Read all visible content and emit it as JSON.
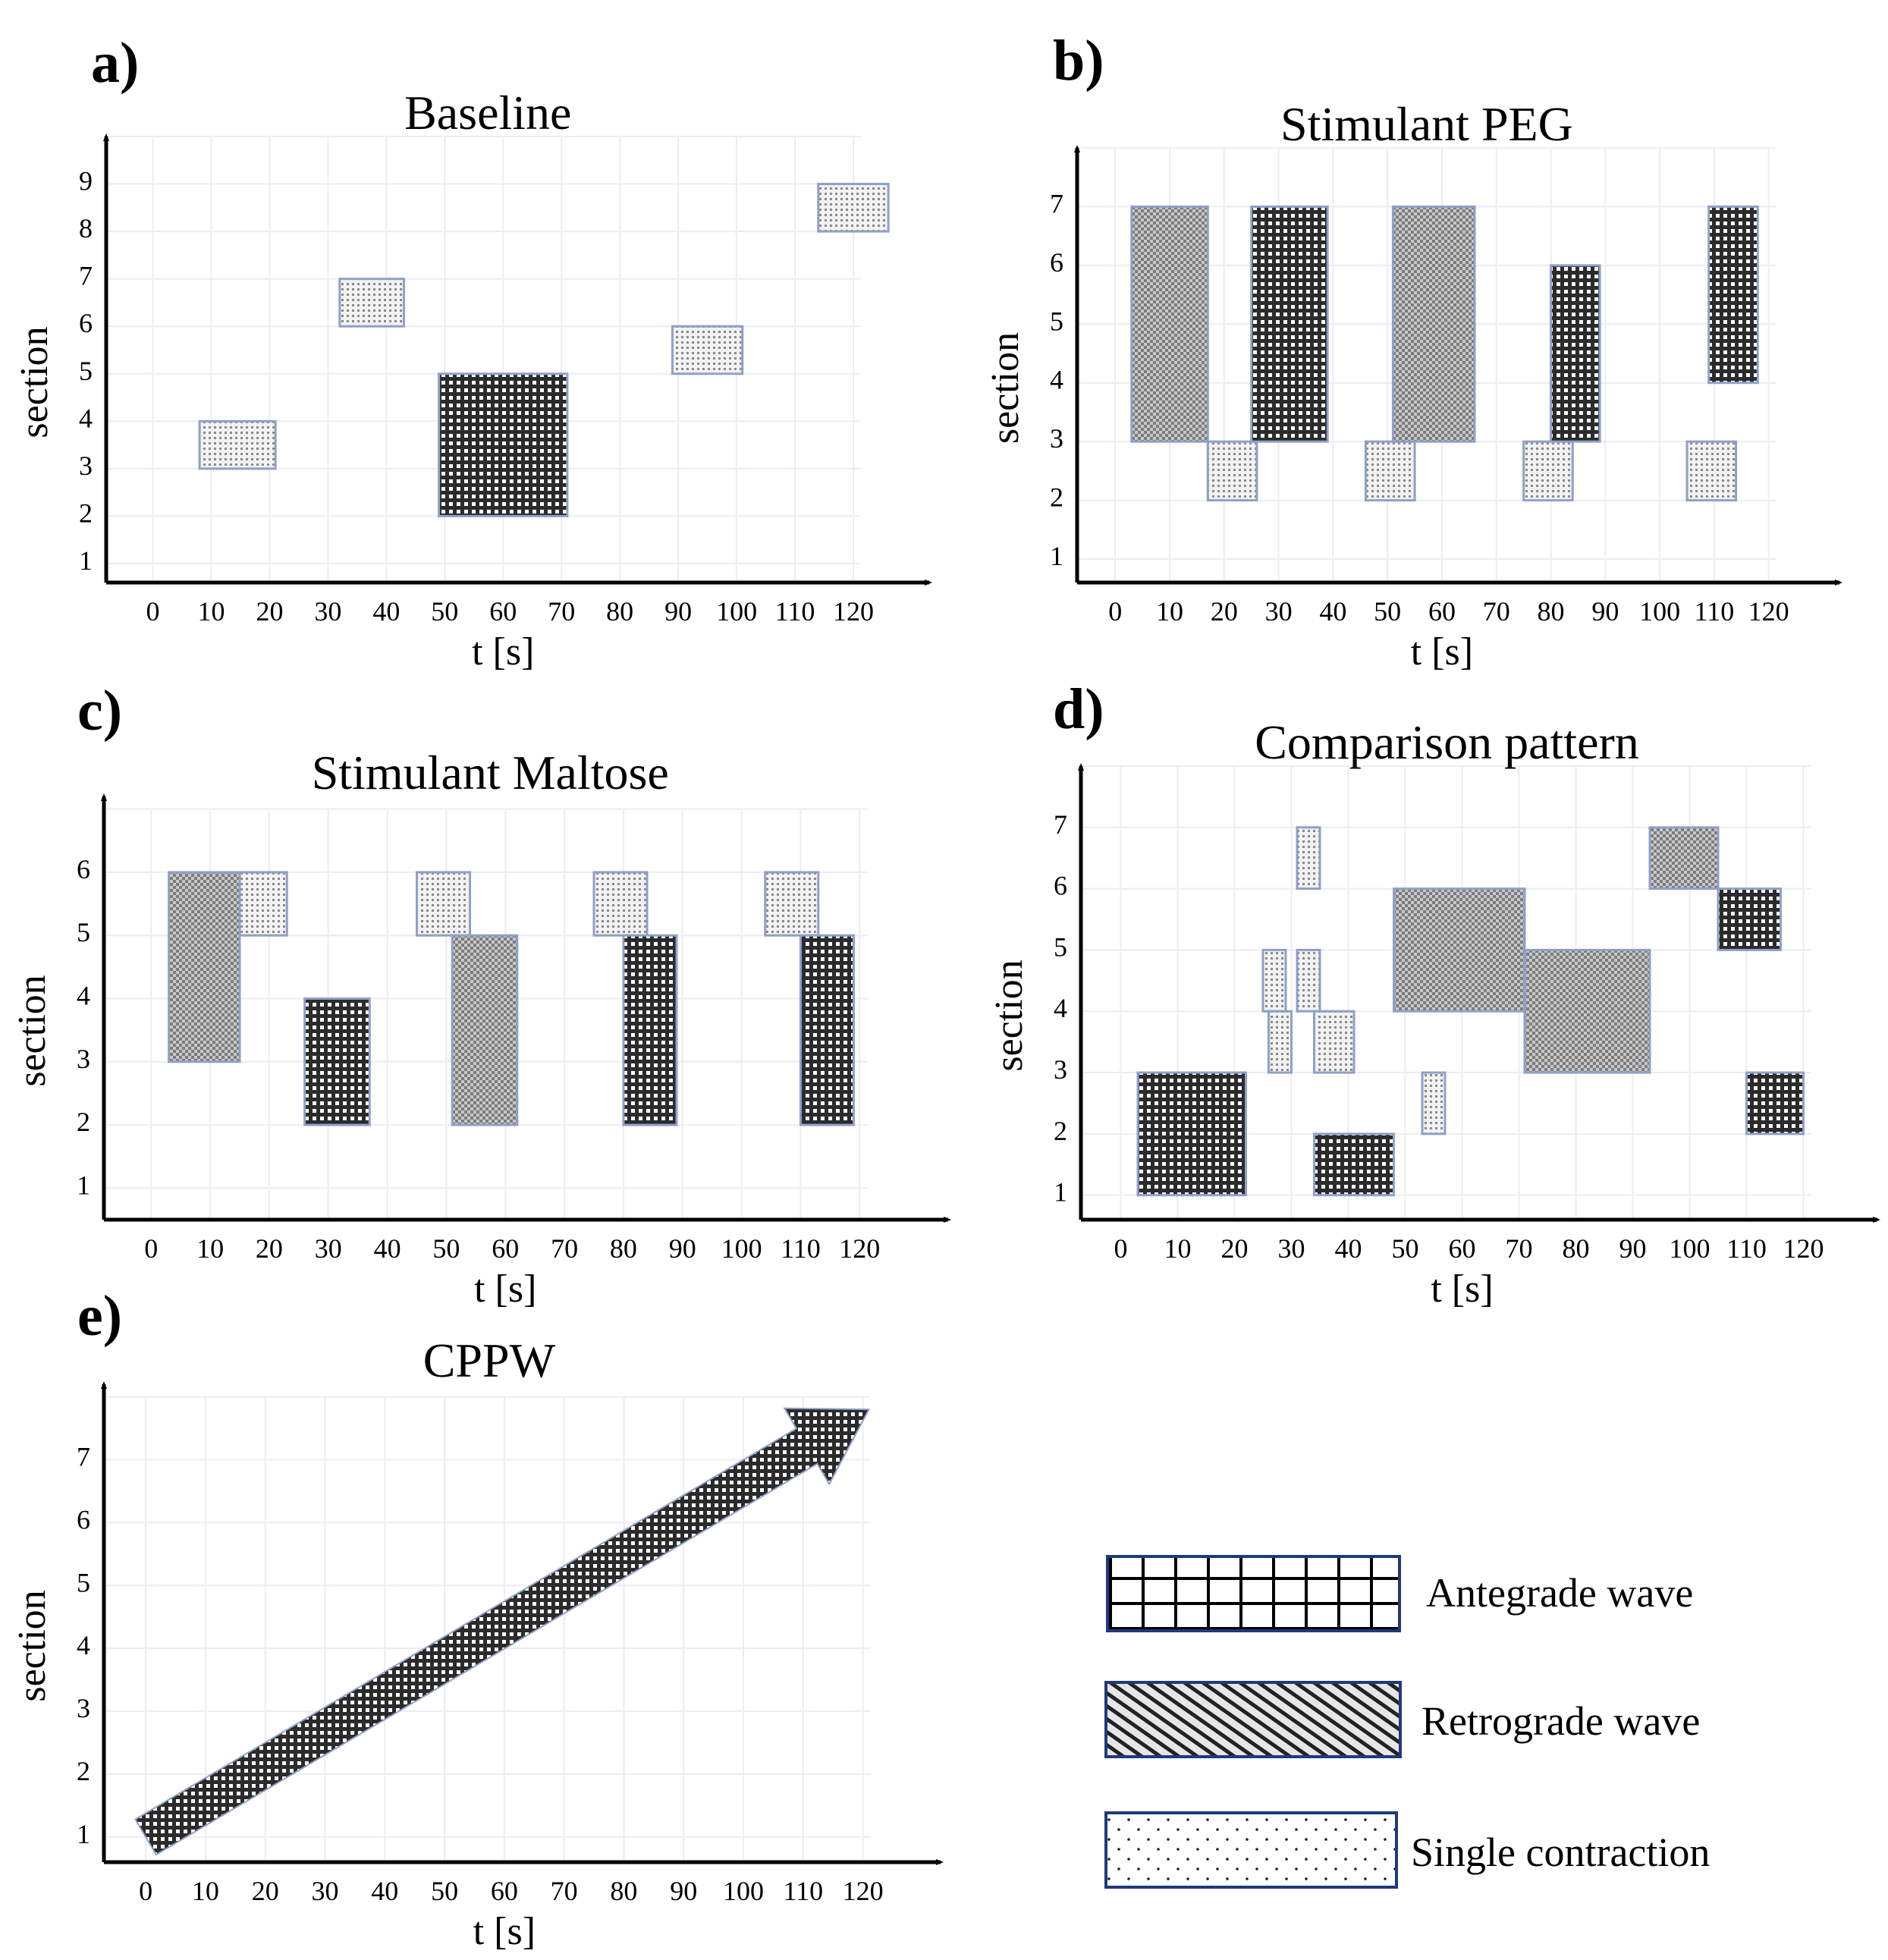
{
  "figure": {
    "panels": [
      {
        "letter": "a)"
      },
      {
        "letter": "b)"
      },
      {
        "letter": "c)"
      },
      {
        "letter": "d)"
      },
      {
        "letter": "e)"
      }
    ],
    "legend": [
      {
        "pattern": "antegrade",
        "label": "Antegrade wave"
      },
      {
        "pattern": "retrograde",
        "label": "Retrograde wave"
      },
      {
        "pattern": "single",
        "label": "Single contraction"
      }
    ],
    "colors": {
      "antegrade_fill": "#2b2b2b",
      "retrograde_fill": "#8c8c8c",
      "single_fill": "#b9b9b9",
      "block_border": "#8fa0c8",
      "legend_border": "#1f3a7a"
    }
  },
  "chart_data": [
    {
      "id": "a",
      "type": "timeline",
      "title": "Baseline",
      "xlabel": "t [s]",
      "ylabel": "section",
      "xticks": [
        0,
        10,
        20,
        30,
        40,
        50,
        60,
        70,
        80,
        90,
        100,
        110,
        120
      ],
      "yticks": [
        1,
        2,
        3,
        4,
        5,
        6,
        7,
        8,
        9
      ],
      "xlim": [
        -8,
        133
      ],
      "ylim": [
        0.6,
        10
      ],
      "grid": true,
      "events": [
        {
          "kind": "single",
          "t0": 8,
          "t1": 21,
          "s0": 3,
          "s1": 4
        },
        {
          "kind": "single",
          "t0": 32,
          "t1": 43,
          "s0": 6,
          "s1": 7
        },
        {
          "kind": "antegrade",
          "t0": 49,
          "t1": 71,
          "s0": 2,
          "s1": 5
        },
        {
          "kind": "single",
          "t0": 89,
          "t1": 101,
          "s0": 5,
          "s1": 6
        },
        {
          "kind": "single",
          "t0": 114,
          "t1": 126,
          "s0": 8,
          "s1": 9
        }
      ]
    },
    {
      "id": "b",
      "type": "timeline",
      "title": "Stimulant PEG",
      "xlabel": "t [s]",
      "ylabel": "section",
      "xticks": [
        0,
        10,
        20,
        30,
        40,
        50,
        60,
        70,
        80,
        90,
        100,
        110,
        120
      ],
      "yticks": [
        1,
        2,
        3,
        4,
        5,
        6,
        7
      ],
      "xlim": [
        -7,
        133
      ],
      "ylim": [
        0.6,
        8
      ],
      "grid": true,
      "events": [
        {
          "kind": "retrograde",
          "t0": 3,
          "t1": 17,
          "s0": 3,
          "s1": 7
        },
        {
          "kind": "single",
          "t0": 17,
          "t1": 26,
          "s0": 2,
          "s1": 3
        },
        {
          "kind": "antegrade",
          "t0": 25,
          "t1": 39,
          "s0": 3,
          "s1": 7
        },
        {
          "kind": "single",
          "t0": 46,
          "t1": 55,
          "s0": 2,
          "s1": 3
        },
        {
          "kind": "retrograde",
          "t0": 51,
          "t1": 66,
          "s0": 3,
          "s1": 7
        },
        {
          "kind": "single",
          "t0": 75,
          "t1": 84,
          "s0": 2,
          "s1": 3
        },
        {
          "kind": "antegrade",
          "t0": 80,
          "t1": 89,
          "s0": 3,
          "s1": 6
        },
        {
          "kind": "single",
          "t0": 105,
          "t1": 114,
          "s0": 2,
          "s1": 3
        },
        {
          "kind": "antegrade",
          "t0": 109,
          "t1": 118,
          "s0": 4,
          "s1": 7
        }
      ]
    },
    {
      "id": "c",
      "type": "timeline",
      "title": "Stimulant Maltose",
      "xlabel": "t [s]",
      "ylabel": "section",
      "xticks": [
        0,
        10,
        20,
        30,
        40,
        50,
        60,
        70,
        80,
        90,
        100,
        110,
        120
      ],
      "yticks": [
        1,
        2,
        3,
        4,
        5,
        6
      ],
      "xlim": [
        -8,
        135
      ],
      "ylim": [
        0.5,
        7.2
      ],
      "grid": true,
      "events": [
        {
          "kind": "retrograde",
          "t0": 3,
          "t1": 15,
          "s0": 3,
          "s1": 6
        },
        {
          "kind": "single",
          "t0": 15,
          "t1": 23,
          "s0": 5,
          "s1": 6
        },
        {
          "kind": "antegrade",
          "t0": 26,
          "t1": 37,
          "s0": 2,
          "s1": 4
        },
        {
          "kind": "single",
          "t0": 45,
          "t1": 54,
          "s0": 5,
          "s1": 6
        },
        {
          "kind": "retrograde",
          "t0": 51,
          "t1": 62,
          "s0": 2,
          "s1": 5
        },
        {
          "kind": "single",
          "t0": 75,
          "t1": 84,
          "s0": 5,
          "s1": 6
        },
        {
          "kind": "antegrade",
          "t0": 80,
          "t1": 89,
          "s0": 2,
          "s1": 5
        },
        {
          "kind": "single",
          "t0": 104,
          "t1": 113,
          "s0": 5,
          "s1": 6
        },
        {
          "kind": "antegrade",
          "t0": 110,
          "t1": 119,
          "s0": 2,
          "s1": 5
        }
      ]
    },
    {
      "id": "d",
      "type": "timeline",
      "title": "Comparison pattern",
      "xlabel": "t [s]",
      "ylabel": "section",
      "xticks": [
        0,
        10,
        20,
        30,
        40,
        50,
        60,
        70,
        80,
        90,
        100,
        110,
        120
      ],
      "yticks": [
        1,
        2,
        3,
        4,
        5,
        6,
        7
      ],
      "xlim": [
        -7,
        133
      ],
      "ylim": [
        0.6,
        8
      ],
      "grid": true,
      "events": [
        {
          "kind": "antegrade",
          "t0": 3,
          "t1": 22,
          "s0": 1,
          "s1": 3
        },
        {
          "kind": "single",
          "t0": 25,
          "t1": 29,
          "s0": 4,
          "s1": 5
        },
        {
          "kind": "single",
          "t0": 26,
          "t1": 30,
          "s0": 3,
          "s1": 4
        },
        {
          "kind": "single",
          "t0": 31,
          "t1": 35,
          "s0": 6,
          "s1": 7
        },
        {
          "kind": "single",
          "t0": 31,
          "t1": 35,
          "s0": 4,
          "s1": 5
        },
        {
          "kind": "single",
          "t0": 34,
          "t1": 41,
          "s0": 3,
          "s1": 4
        },
        {
          "kind": "antegrade",
          "t0": 34,
          "t1": 48,
          "s0": 1,
          "s1": 2
        },
        {
          "kind": "retrograde",
          "t0": 48,
          "t1": 71,
          "s0": 4,
          "s1": 6
        },
        {
          "kind": "single",
          "t0": 53,
          "t1": 57,
          "s0": 2,
          "s1": 3
        },
        {
          "kind": "retrograde",
          "t0": 71,
          "t1": 93,
          "s0": 3,
          "s1": 5
        },
        {
          "kind": "retrograde",
          "t0": 93,
          "t1": 105,
          "s0": 6,
          "s1": 7
        },
        {
          "kind": "antegrade",
          "t0": 105,
          "t1": 116,
          "s0": 5,
          "s1": 6
        },
        {
          "kind": "antegrade",
          "t0": 110,
          "t1": 120,
          "s0": 2,
          "s1": 3
        }
      ]
    },
    {
      "id": "e",
      "type": "timeline",
      "title": "CPPW",
      "xlabel": "t [s]",
      "ylabel": "section",
      "xticks": [
        0,
        10,
        20,
        30,
        40,
        50,
        60,
        70,
        80,
        90,
        100,
        110,
        120
      ],
      "yticks": [
        1,
        2,
        3,
        4,
        5,
        6,
        7
      ],
      "xlim": [
        -7,
        133
      ],
      "ylim": [
        0.6,
        8.2
      ],
      "grid": true,
      "events": [
        {
          "kind": "arrow",
          "pattern": "antegrade",
          "t_start": 0,
          "s_start": 1,
          "t_end": 121,
          "s_end": 7.8
        }
      ]
    }
  ]
}
